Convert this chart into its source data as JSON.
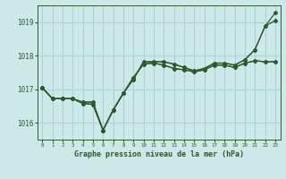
{
  "xlabel": "Graphe pression niveau de la mer (hPa)",
  "bg_color": "#cce8e8",
  "grid_color": "#aad4d4",
  "line_color": "#2d5a2d",
  "ylim": [
    1015.5,
    1019.5
  ],
  "xlim": [
    -0.5,
    23.5
  ],
  "yticks": [
    1016,
    1017,
    1018,
    1019
  ],
  "xticks": [
    0,
    1,
    2,
    3,
    4,
    5,
    6,
    7,
    8,
    9,
    10,
    11,
    12,
    13,
    14,
    15,
    16,
    17,
    18,
    19,
    20,
    21,
    22,
    23
  ],
  "series": [
    [
      1017.05,
      1016.72,
      1016.72,
      1016.72,
      1016.62,
      1016.62,
      1015.78,
      1016.38,
      1016.88,
      1017.3,
      1017.82,
      1017.82,
      1017.82,
      1017.75,
      1017.65,
      1017.55,
      1017.62,
      1017.78,
      1017.78,
      1017.72,
      1017.88,
      1018.18,
      1018.88,
      1019.28
    ],
    [
      1017.05,
      1016.72,
      1016.72,
      1016.72,
      1016.62,
      1016.62,
      1015.78,
      1016.38,
      1016.88,
      1017.3,
      1017.82,
      1017.82,
      1017.82,
      1017.75,
      1017.65,
      1017.55,
      1017.62,
      1017.78,
      1017.78,
      1017.72,
      1017.88,
      1018.18,
      1018.88,
      1019.05
    ],
    [
      1017.05,
      1016.72,
      1016.72,
      1016.72,
      1016.58,
      1016.55,
      1015.78,
      1016.38,
      1016.88,
      1017.35,
      1017.75,
      1017.78,
      1017.72,
      1017.62,
      1017.58,
      1017.52,
      1017.58,
      1017.72,
      1017.72,
      1017.65,
      1017.78,
      1017.85,
      1017.82,
      1017.82
    ],
    [
      1017.05,
      1016.72,
      1016.72,
      1016.72,
      1016.58,
      1016.55,
      1015.78,
      1016.38,
      1016.88,
      1017.35,
      1017.75,
      1017.78,
      1017.72,
      1017.62,
      1017.58,
      1017.52,
      1017.58,
      1017.72,
      1017.72,
      1017.65,
      1017.78,
      1017.85,
      1017.82,
      1017.82
    ]
  ]
}
